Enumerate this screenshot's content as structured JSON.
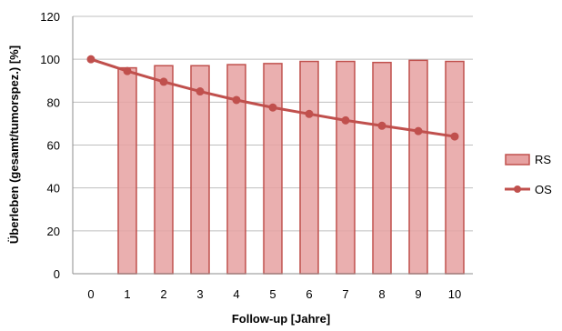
{
  "chart_data": {
    "type": "bar",
    "title": "",
    "xlabel": "Follow-up [Jahre]",
    "ylabel": "Überleben (gesamt/tumorspez.) [%]",
    "ylim": [
      0,
      120
    ],
    "yticks": [
      0,
      20,
      40,
      60,
      80,
      100,
      120
    ],
    "categories": [
      "0",
      "1",
      "2",
      "3",
      "4",
      "5",
      "6",
      "7",
      "8",
      "9",
      "10"
    ],
    "grid": "horizontal",
    "legend_position": "right",
    "series": [
      {
        "name": "RS",
        "type": "bar",
        "color": "#e6a1a1",
        "edge_color": "#c0504d",
        "values": [
          null,
          96,
          97,
          97,
          97.5,
          98,
          99,
          99,
          98.5,
          99.5,
          99
        ]
      },
      {
        "name": "OS",
        "type": "line",
        "color": "#c0504d",
        "marker": "circle",
        "values": [
          100,
          94.5,
          89.5,
          85,
          81,
          77.5,
          74.5,
          71.5,
          69,
          66.5,
          64
        ]
      }
    ]
  }
}
